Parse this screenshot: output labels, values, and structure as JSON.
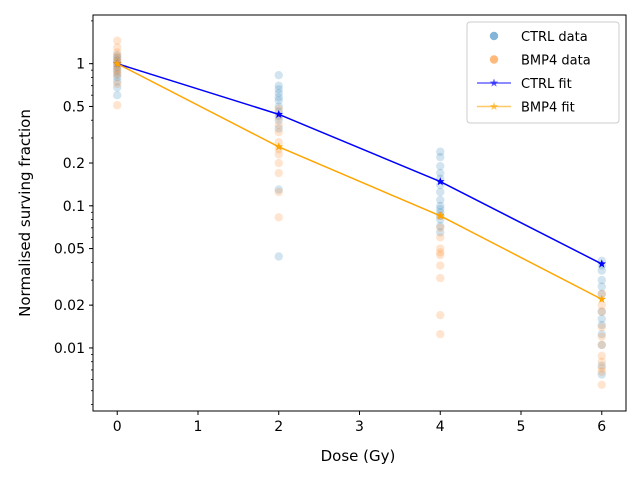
{
  "chart_data": {
    "type": "scatter",
    "xlabel": "Dose (Gy)",
    "ylabel": "Normalised surving fraction",
    "xlim": [
      -0.3,
      6.3
    ],
    "ylim": [
      0.0036,
      2.2
    ],
    "yscale": "log",
    "grid": false,
    "legend_position": "top-right",
    "x_ticks": [
      0,
      1,
      2,
      3,
      4,
      5,
      6
    ],
    "x_tick_labels": [
      "0",
      "1",
      "2",
      "3",
      "4",
      "5",
      "6"
    ],
    "y_ticks": [
      0.01,
      0.02,
      0.05,
      0.1,
      0.2,
      0.5,
      1
    ],
    "y_tick_labels": [
      "0.01",
      "0.02",
      "0.05",
      "0.1",
      "0.2",
      "0.5",
      "1"
    ],
    "series": [
      {
        "name": "CTRL data",
        "kind": "points",
        "color": "#1f77b4",
        "points": [
          [
            0,
            1.15
          ],
          [
            0,
            1.1
          ],
          [
            0,
            1.05
          ],
          [
            0,
            1.0
          ],
          [
            0,
            0.95
          ],
          [
            0,
            0.9
          ],
          [
            0,
            0.85
          ],
          [
            0,
            0.8
          ],
          [
            0,
            0.75
          ],
          [
            0,
            0.68
          ],
          [
            0,
            0.6
          ],
          [
            2,
            0.83
          ],
          [
            2,
            0.7
          ],
          [
            2,
            0.66
          ],
          [
            2,
            0.62
          ],
          [
            2,
            0.58
          ],
          [
            2,
            0.55
          ],
          [
            2,
            0.5
          ],
          [
            2,
            0.46
          ],
          [
            2,
            0.43
          ],
          [
            2,
            0.4
          ],
          [
            2,
            0.35
          ],
          [
            2,
            0.13
          ],
          [
            2,
            0.044
          ],
          [
            4,
            0.24
          ],
          [
            4,
            0.22
          ],
          [
            4,
            0.19
          ],
          [
            4,
            0.17
          ],
          [
            4,
            0.155
          ],
          [
            4,
            0.14
          ],
          [
            4,
            0.125
          ],
          [
            4,
            0.11
          ],
          [
            4,
            0.1
          ],
          [
            4,
            0.095
          ],
          [
            4,
            0.09
          ],
          [
            4,
            0.085
          ],
          [
            4,
            0.08
          ],
          [
            4,
            0.072
          ],
          [
            4,
            0.065
          ],
          [
            6,
            0.041
          ],
          [
            6,
            0.038
          ],
          [
            6,
            0.035
          ],
          [
            6,
            0.03
          ],
          [
            6,
            0.027
          ],
          [
            6,
            0.024
          ],
          [
            6,
            0.018
          ],
          [
            6,
            0.016
          ],
          [
            6,
            0.0145
          ],
          [
            6,
            0.0125
          ],
          [
            6,
            0.0105
          ],
          [
            6,
            0.0075
          ],
          [
            6,
            0.0065
          ]
        ]
      },
      {
        "name": "BMP4 data",
        "kind": "points",
        "color": "#ff7f0e",
        "points": [
          [
            0,
            1.45
          ],
          [
            0,
            1.3
          ],
          [
            0,
            1.2
          ],
          [
            0,
            1.12
          ],
          [
            0,
            1.06
          ],
          [
            0,
            1.02
          ],
          [
            0,
            0.98
          ],
          [
            0,
            0.93
          ],
          [
            0,
            0.88
          ],
          [
            0,
            0.83
          ],
          [
            0,
            0.72
          ],
          [
            0,
            0.51
          ],
          [
            2,
            0.48
          ],
          [
            2,
            0.42
          ],
          [
            2,
            0.37
          ],
          [
            2,
            0.33
          ],
          [
            2,
            0.28
          ],
          [
            2,
            0.25
          ],
          [
            2,
            0.23
          ],
          [
            2,
            0.2
          ],
          [
            2,
            0.17
          ],
          [
            2,
            0.125
          ],
          [
            2,
            0.083
          ],
          [
            4,
            0.085
          ],
          [
            4,
            0.07
          ],
          [
            4,
            0.06
          ],
          [
            4,
            0.05
          ],
          [
            4,
            0.047
          ],
          [
            4,
            0.045
          ],
          [
            4,
            0.038
          ],
          [
            4,
            0.031
          ],
          [
            4,
            0.017
          ],
          [
            4,
            0.0125
          ],
          [
            6,
            0.024
          ],
          [
            6,
            0.02
          ],
          [
            6,
            0.018
          ],
          [
            6,
            0.014
          ],
          [
            6,
            0.012
          ],
          [
            6,
            0.0105
          ],
          [
            6,
            0.0088
          ],
          [
            6,
            0.008
          ],
          [
            6,
            0.0072
          ],
          [
            6,
            0.0068
          ],
          [
            6,
            0.0055
          ]
        ]
      },
      {
        "name": "CTRL fit",
        "kind": "line",
        "color": "#0000ff",
        "marker": "star",
        "x": [
          0,
          2,
          4,
          6
        ],
        "y": [
          1.0,
          0.44,
          0.148,
          0.039
        ]
      },
      {
        "name": "BMP4 fit",
        "kind": "line",
        "color": "#ffa500",
        "marker": "star",
        "x": [
          0,
          2,
          4,
          6
        ],
        "y": [
          1.0,
          0.26,
          0.085,
          0.022
        ]
      }
    ]
  }
}
